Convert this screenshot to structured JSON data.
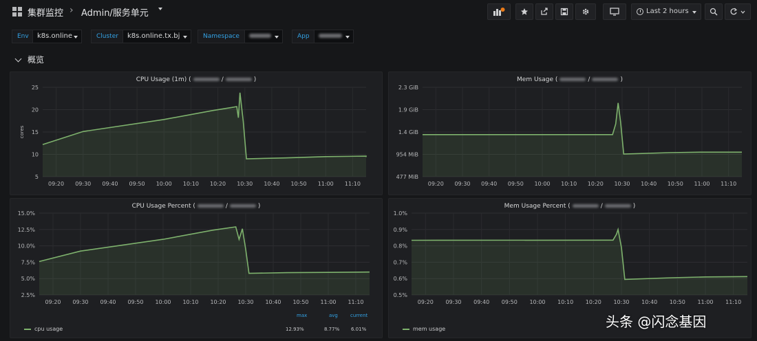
{
  "breadcrumb": {
    "folder": "集群监控",
    "separator": "›",
    "dashboard": "Admin/服务单元"
  },
  "time_range": "Last 2 hours",
  "icons": [
    "apps-icon",
    "add-panel-icon",
    "star-icon",
    "share-icon",
    "save-icon",
    "settings-icon",
    "tv-mode-icon",
    "clock-icon",
    "zoom-out-icon",
    "refresh-icon",
    "chevron-down-icon"
  ],
  "variables": [
    {
      "label": "Env",
      "value": "k8s.online"
    },
    {
      "label": "Cluster",
      "value": "k8s.online.tx.bj"
    },
    {
      "label": "Namespace",
      "value": ""
    },
    {
      "label": "App",
      "value": ""
    }
  ],
  "row": {
    "title": "概览"
  },
  "colors": {
    "series": "#7eb26d",
    "accent": "#33a2e5",
    "background": "#161719",
    "panel": "#1e1f22"
  },
  "panels": {
    "cpu_usage": {
      "title": "CPU Usage (1m)",
      "ylabel": "cores"
    },
    "mem_usage": {
      "title": "Mem Usage"
    },
    "cpu_percent": {
      "title": "CPU Usage Percent",
      "legend": {
        "series": "cpu usage",
        "max_label": "max",
        "avg_label": "avg",
        "current_label": "current",
        "max": "12.93%",
        "avg": "8.77%",
        "current": "6.01%"
      }
    },
    "mem_percent": {
      "title": "Mem Usage Percent",
      "legend": {
        "series": "mem usage"
      }
    }
  },
  "chart_data": [
    {
      "type": "area",
      "title": "CPU Usage (1m)",
      "ylabel": "cores",
      "yticks": [
        "5",
        "10",
        "15",
        "20",
        "25"
      ],
      "ylim": [
        5,
        25
      ],
      "xticks": [
        "09:20",
        "09:30",
        "09:40",
        "09:50",
        "10:00",
        "10:10",
        "10:20",
        "10:30",
        "10:40",
        "10:50",
        "11:00",
        "11:10"
      ],
      "xdomain": [
        9.25,
        11.25
      ],
      "series": [
        {
          "values": [
            [
              9.2,
              12.2
            ],
            [
              9.5,
              15.1
            ],
            [
              10.0,
              17.8
            ],
            [
              10.3,
              19.8
            ],
            [
              10.42,
              20.5
            ],
            [
              10.45,
              20.7
            ],
            [
              10.46,
              18.2
            ],
            [
              10.47,
              23.8
            ],
            [
              10.49,
              17.5
            ],
            [
              10.51,
              9.0
            ],
            [
              10.75,
              9.2
            ],
            [
              11.0,
              9.5
            ],
            [
              11.25,
              9.6
            ],
            [
              11.31,
              9.4
            ]
          ]
        }
      ]
    },
    {
      "type": "area",
      "title": "Mem Usage",
      "yticks": [
        "477 MiB",
        "954 MiB",
        "1.4 GiB",
        "1.9 GiB",
        "2.3 GiB"
      ],
      "ylim": [
        0.466,
        2.3
      ],
      "xticks": [
        "09:20",
        "09:30",
        "09:40",
        "09:50",
        "10:00",
        "10:10",
        "10:20",
        "10:30",
        "10:40",
        "10:50",
        "11:00",
        "11:10"
      ],
      "xdomain": [
        9.25,
        11.25
      ],
      "series": [
        {
          "values": [
            [
              9.2,
              1.33
            ],
            [
              10.44,
              1.33
            ],
            [
              10.46,
              1.55
            ],
            [
              10.475,
              1.98
            ],
            [
              10.49,
              1.6
            ],
            [
              10.51,
              0.93
            ],
            [
              10.8,
              0.96
            ],
            [
              11.0,
              0.97
            ],
            [
              11.31,
              0.97
            ]
          ]
        }
      ]
    },
    {
      "type": "area",
      "title": "CPU Usage Percent",
      "yticks": [
        "2.5%",
        "5.0%",
        "7.5%",
        "10.0%",
        "12.5%",
        "15.0%"
      ],
      "ylim": [
        2.5,
        15.0
      ],
      "xticks": [
        "09:20",
        "09:30",
        "09:40",
        "09:50",
        "10:00",
        "10:10",
        "10:20",
        "10:30",
        "10:40",
        "10:50",
        "11:00",
        "11:10"
      ],
      "xdomain": [
        9.25,
        11.25
      ],
      "series": [
        {
          "name": "cpu usage",
          "values": [
            [
              9.2,
              7.6
            ],
            [
              9.5,
              9.2
            ],
            [
              10.0,
              11.0
            ],
            [
              10.3,
              12.4
            ],
            [
              10.44,
              12.9
            ],
            [
              10.46,
              11.0
            ],
            [
              10.48,
              12.6
            ],
            [
              10.5,
              9.5
            ],
            [
              10.52,
              5.8
            ],
            [
              10.75,
              5.9
            ],
            [
              11.0,
              5.95
            ],
            [
              11.31,
              6.0
            ]
          ]
        }
      ]
    },
    {
      "type": "area",
      "title": "Mem Usage Percent",
      "yticks": [
        "0.5%",
        "0.6%",
        "0.7%",
        "0.8%",
        "0.9%",
        "1.0%"
      ],
      "ylim": [
        0.5,
        1.0
      ],
      "xticks": [
        "09:20",
        "09:30",
        "09:40",
        "09:50",
        "10:00",
        "10:10",
        "10:20",
        "10:30",
        "10:40",
        "10:50",
        "11:00",
        "11:10"
      ],
      "xdomain": [
        9.25,
        11.25
      ],
      "series": [
        {
          "name": "mem usage",
          "values": [
            [
              9.2,
              0.834
            ],
            [
              10.45,
              0.835
            ],
            [
              10.47,
              0.87
            ],
            [
              10.48,
              0.9
            ],
            [
              10.5,
              0.79
            ],
            [
              10.52,
              0.595
            ],
            [
              10.8,
              0.605
            ],
            [
              11.0,
              0.61
            ],
            [
              11.31,
              0.612
            ]
          ]
        }
      ]
    }
  ],
  "watermark": "头条 @闪念基因"
}
